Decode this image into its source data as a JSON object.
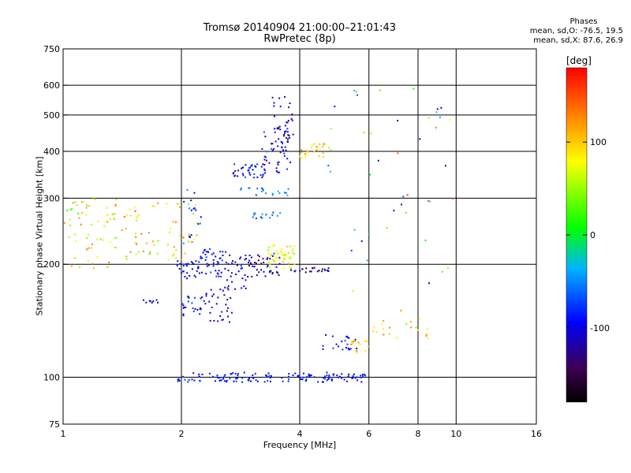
{
  "title": {
    "line1": "Tromsø 20140904 21:00:00–21:01:43",
    "line2": "RwPretec (8p)"
  },
  "phases": {
    "header": "Phases",
    "o_line": "mean, sd,O: -76.5, 19.5",
    "x_line": "mean, sd,X:  87.6, 26.9"
  },
  "chart_data": {
    "type": "scatter",
    "title": "Tromsø 20140904 21:00:00–21:01:43",
    "subtitle": "RwPretec (8p)",
    "xlabel": "Frequency [MHz]",
    "ylabel": "Stationary phase Virtual Height [km]",
    "x_scale": "log",
    "y_scale": "log",
    "xlim": [
      1,
      16
    ],
    "ylim": [
      75,
      750
    ],
    "x_ticks": [
      1,
      2,
      4,
      6,
      8,
      10,
      16
    ],
    "x_tick_labels": [
      "1",
      "2",
      "4",
      "6",
      "8",
      "10",
      "16"
    ],
    "x_grid": [
      2,
      4,
      6,
      8,
      10
    ],
    "y_ticks": [
      75,
      100,
      200,
      300,
      400,
      500,
      600,
      750
    ],
    "y_tick_labels": [
      "75",
      "100",
      "200",
      "300",
      "400",
      "500",
      "600",
      "750"
    ],
    "y_grid": [
      100,
      200,
      300,
      400,
      500,
      600
    ],
    "grid": true,
    "colorbar": {
      "label": "[deg]",
      "range": [
        -180,
        180
      ],
      "ticks": [
        -100,
        0,
        100
      ],
      "tick_labels": [
        "-100",
        "0",
        "100"
      ],
      "colors": [
        "#000000",
        "#3c0050",
        "#0000ff",
        "#00b4ff",
        "#00ff00",
        "#ffff00",
        "#ff8000",
        "#ff0000"
      ]
    },
    "clusters": [
      {
        "f": [
          1.95,
          5.9
        ],
        "h": [
          97,
          103
        ],
        "phase": [
          -110,
          -70
        ],
        "n": 140
      },
      {
        "f": [
          1.95,
          2.2
        ],
        "h": [
          180,
          205
        ],
        "phase": [
          -115,
          -80
        ],
        "n": 22
      },
      {
        "f": [
          2.2,
          2.55
        ],
        "h": [
          185,
          220
        ],
        "phase": [
          -120,
          -70
        ],
        "n": 45
      },
      {
        "f": [
          2.55,
          2.95
        ],
        "h": [
          170,
          220
        ],
        "phase": [
          -130,
          -80
        ],
        "n": 35
      },
      {
        "f": [
          2.95,
          3.6
        ],
        "h": [
          185,
          215
        ],
        "phase": [
          -150,
          -90
        ],
        "n": 45
      },
      {
        "f": [
          3.3,
          3.9
        ],
        "h": [
          195,
          225
        ],
        "phase": [
          40,
          110
        ],
        "n": 50
      },
      {
        "f": [
          3.8,
          4.8
        ],
        "h": [
          190,
          196
        ],
        "phase": [
          -160,
          -90
        ],
        "n": 25
      },
      {
        "f": [
          2.0,
          2.3
        ],
        "h": [
          145,
          165
        ],
        "phase": [
          -120,
          -70
        ],
        "n": 25
      },
      {
        "f": [
          2.3,
          2.7
        ],
        "h": [
          140,
          175
        ],
        "phase": [
          -140,
          -80
        ],
        "n": 30
      },
      {
        "f": [
          1.6,
          1.75
        ],
        "h": [
          158,
          162
        ],
        "phase": [
          -110,
          -90
        ],
        "n": 8
      },
      {
        "f": [
          1.0,
          1.45
        ],
        "h": [
          195,
          300
        ],
        "phase": [
          20,
          140
        ],
        "n": 65
      },
      {
        "f": [
          1.45,
          2.2
        ],
        "h": [
          205,
          295
        ],
        "phase": [
          30,
          150
        ],
        "n": 60
      },
      {
        "f": [
          2.0,
          2.25
        ],
        "h": [
          200,
          320
        ],
        "phase": [
          -130,
          -40
        ],
        "n": 20
      },
      {
        "f": [
          2.7,
          3.3
        ],
        "h": [
          340,
          370
        ],
        "phase": [
          -130,
          -60
        ],
        "n": 40
      },
      {
        "f": [
          3.2,
          3.8
        ],
        "h": [
          350,
          470
        ],
        "phase": [
          -140,
          -60
        ],
        "n": 55
      },
      {
        "f": [
          3.4,
          3.9
        ],
        "h": [
          430,
          560
        ],
        "phase": [
          -140,
          -90
        ],
        "n": 25
      },
      {
        "f": [
          4.0,
          4.8
        ],
        "h": [
          385,
          420
        ],
        "phase": [
          60,
          130
        ],
        "n": 25
      },
      {
        "f": [
          3.0,
          3.6
        ],
        "h": [
          265,
          275
        ],
        "phase": [
          -80,
          -40
        ],
        "n": 15
      },
      {
        "f": [
          2.8,
          3.8
        ],
        "h": [
          305,
          320
        ],
        "phase": [
          -70,
          -30
        ],
        "n": 20
      },
      {
        "f": [
          4.5,
          5.6
        ],
        "h": [
          118,
          130
        ],
        "phase": [
          -120,
          -70
        ],
        "n": 22
      },
      {
        "f": [
          5.4,
          6.0
        ],
        "h": [
          115,
          125
        ],
        "phase": [
          80,
          130
        ],
        "n": 15
      },
      {
        "f": [
          6.0,
          8.5
        ],
        "h": [
          125,
          145
        ],
        "phase": [
          30,
          140
        ],
        "n": 20
      },
      {
        "f": [
          4.4,
          10.0
        ],
        "h": [
          150,
          600
        ],
        "phase": [
          -140,
          160
        ],
        "n": 45
      }
    ]
  }
}
